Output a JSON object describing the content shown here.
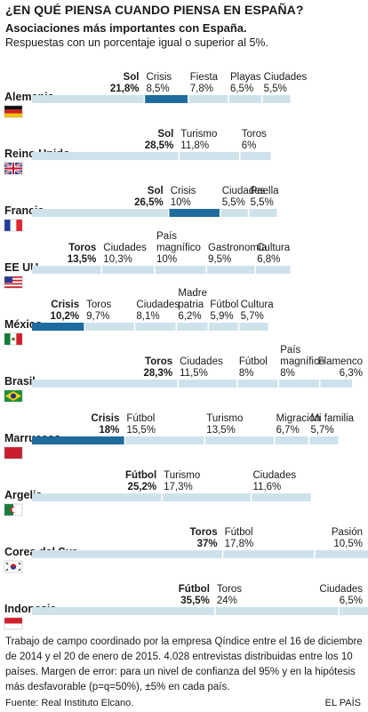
{
  "header": {
    "title": "¿EN QUÉ PIENSA CUANDO PIENSA EN ESPAÑA?",
    "subtitle": "Asociaciones más importantes con España.",
    "note": "Respuestas con un porcentaje igual o superior al 5%."
  },
  "colors": {
    "highlight": "#1e6c9e",
    "bar": "#cfe2ec",
    "divider": "#ffffff",
    "text": "#1a1a1a"
  },
  "chart_data": {
    "type": "bar",
    "orientation": "horizontal-stacked",
    "value_unit": "%",
    "highlight_series": [
      "Crisis"
    ],
    "rows": [
      {
        "country": "Alemania",
        "flag": "de-flag-icon",
        "segments": [
          {
            "name": "Sol",
            "value": 21.8,
            "label": "21,8%"
          },
          {
            "name": "Crisis",
            "value": 8.5,
            "label": "8,5%"
          },
          {
            "name": "Fiesta",
            "value": 7.8,
            "label": "7,8%"
          },
          {
            "name": "Playas",
            "value": 6.5,
            "label": "6,5%"
          },
          {
            "name": "Ciudades",
            "value": 5.5,
            "label": "5,5%"
          }
        ]
      },
      {
        "country": "Reino Unido",
        "flag": "gb-flag-icon",
        "segments": [
          {
            "name": "Sol",
            "value": 28.5,
            "label": "28,5%"
          },
          {
            "name": "Turismo",
            "value": 11.8,
            "label": "11,8%"
          },
          {
            "name": "Toros",
            "value": 6,
            "label": "6%"
          }
        ]
      },
      {
        "country": "Francia",
        "flag": "fr-flag-icon",
        "segments": [
          {
            "name": "Sol",
            "value": 26.5,
            "label": "26,5%"
          },
          {
            "name": "Crisis",
            "value": 10,
            "label": "10%"
          },
          {
            "name": "Ciudades",
            "value": 5.5,
            "label": "5,5%"
          },
          {
            "name": "Paella",
            "value": 5.5,
            "label": "5,5%"
          }
        ]
      },
      {
        "country": "EE UU",
        "flag": "us-flag-icon",
        "segments": [
          {
            "name": "Toros",
            "value": 13.5,
            "label": "13,5%"
          },
          {
            "name": "Ciudades",
            "value": 10.3,
            "label": "10,3%"
          },
          {
            "name": "País magnífico",
            "lines": [
              "País",
              "magnífico"
            ],
            "value": 10,
            "label": "10%"
          },
          {
            "name": "Gastronomía",
            "value": 9.5,
            "label": "9,5%"
          },
          {
            "name": "Cultura",
            "value": 6.8,
            "label": "6,8%"
          }
        ]
      },
      {
        "country": "México",
        "flag": "mx-flag-icon",
        "segments": [
          {
            "name": "Crisis",
            "value": 10.2,
            "label": "10,2%"
          },
          {
            "name": "Toros",
            "value": 9.7,
            "label": "9,7%"
          },
          {
            "name": "Ciudades",
            "value": 8.1,
            "label": "8,1%"
          },
          {
            "name": "Madre patria",
            "lines": [
              "Madre",
              "patria"
            ],
            "value": 6.2,
            "label": "6,2%"
          },
          {
            "name": "Fútbol",
            "value": 5.9,
            "label": "5,9%"
          },
          {
            "name": "Cultura",
            "value": 5.7,
            "label": "5,7%"
          }
        ]
      },
      {
        "country": "Brasil",
        "flag": "br-flag-icon",
        "segments": [
          {
            "name": "Toros",
            "value": 28.3,
            "label": "28,3%"
          },
          {
            "name": "Ciudades",
            "value": 11.5,
            "label": "11,5%"
          },
          {
            "name": "Fútbol",
            "value": 8,
            "label": "8%"
          },
          {
            "name": "País magnífico",
            "lines": [
              "País",
              "magnífico"
            ],
            "value": 8,
            "label": "8%"
          },
          {
            "name": "Flamenco",
            "value": 6.3,
            "label": "6,3%"
          }
        ]
      },
      {
        "country": "Marruecos",
        "flag": "ma-flag-icon",
        "segments": [
          {
            "name": "Crisis",
            "value": 18,
            "label": "18%"
          },
          {
            "name": "Fútbol",
            "value": 15.5,
            "label": "15,5%"
          },
          {
            "name": "Turismo",
            "value": 13.5,
            "label": "13,5%"
          },
          {
            "name": "Migración",
            "value": 6.7,
            "label": "6,7%"
          },
          {
            "name": "Mi familia",
            "value": 5.7,
            "label": "5,7%"
          }
        ]
      },
      {
        "country": "Argelia",
        "flag": "dz-flag-icon",
        "segments": [
          {
            "name": "Fútbol",
            "value": 25.2,
            "label": "25,2%"
          },
          {
            "name": "Turismo",
            "value": 17.3,
            "label": "17,3%"
          },
          {
            "name": "Ciudades",
            "value": 11.6,
            "label": "11,6%"
          }
        ]
      },
      {
        "country": "Corea del Sur",
        "flag": "kr-flag-icon",
        "segments": [
          {
            "name": "Toros",
            "value": 37,
            "label": "37%"
          },
          {
            "name": "Fútbol",
            "value": 17.8,
            "label": "17,8%"
          },
          {
            "name": "Pasión",
            "value": 10.5,
            "label": "10,5%"
          }
        ]
      },
      {
        "country": "Indonesia",
        "flag": "id-flag-icon",
        "segments": [
          {
            "name": "Fútbol",
            "value": 35.5,
            "label": "35,5%"
          },
          {
            "name": "Toros",
            "value": 24,
            "label": "24%"
          },
          {
            "name": "Ciudades",
            "value": 6.5,
            "label": "6,5%"
          }
        ]
      }
    ]
  },
  "footer": {
    "methodology": "Trabajo de campo coordinado por la empresa Qíndice entre el 16 de diciembre de 2014 y el 20 de enero de 2015. 4.028 entrevistas distribuidas entre los 10 países. Margen de error: para un nivel de confianza del 95% y en la hipótesis más desfavorable (p=q=50%), ±5% en cada país.",
    "source": "Fuente: Real Instituto Elcano.",
    "brand": "EL PAÍS"
  }
}
